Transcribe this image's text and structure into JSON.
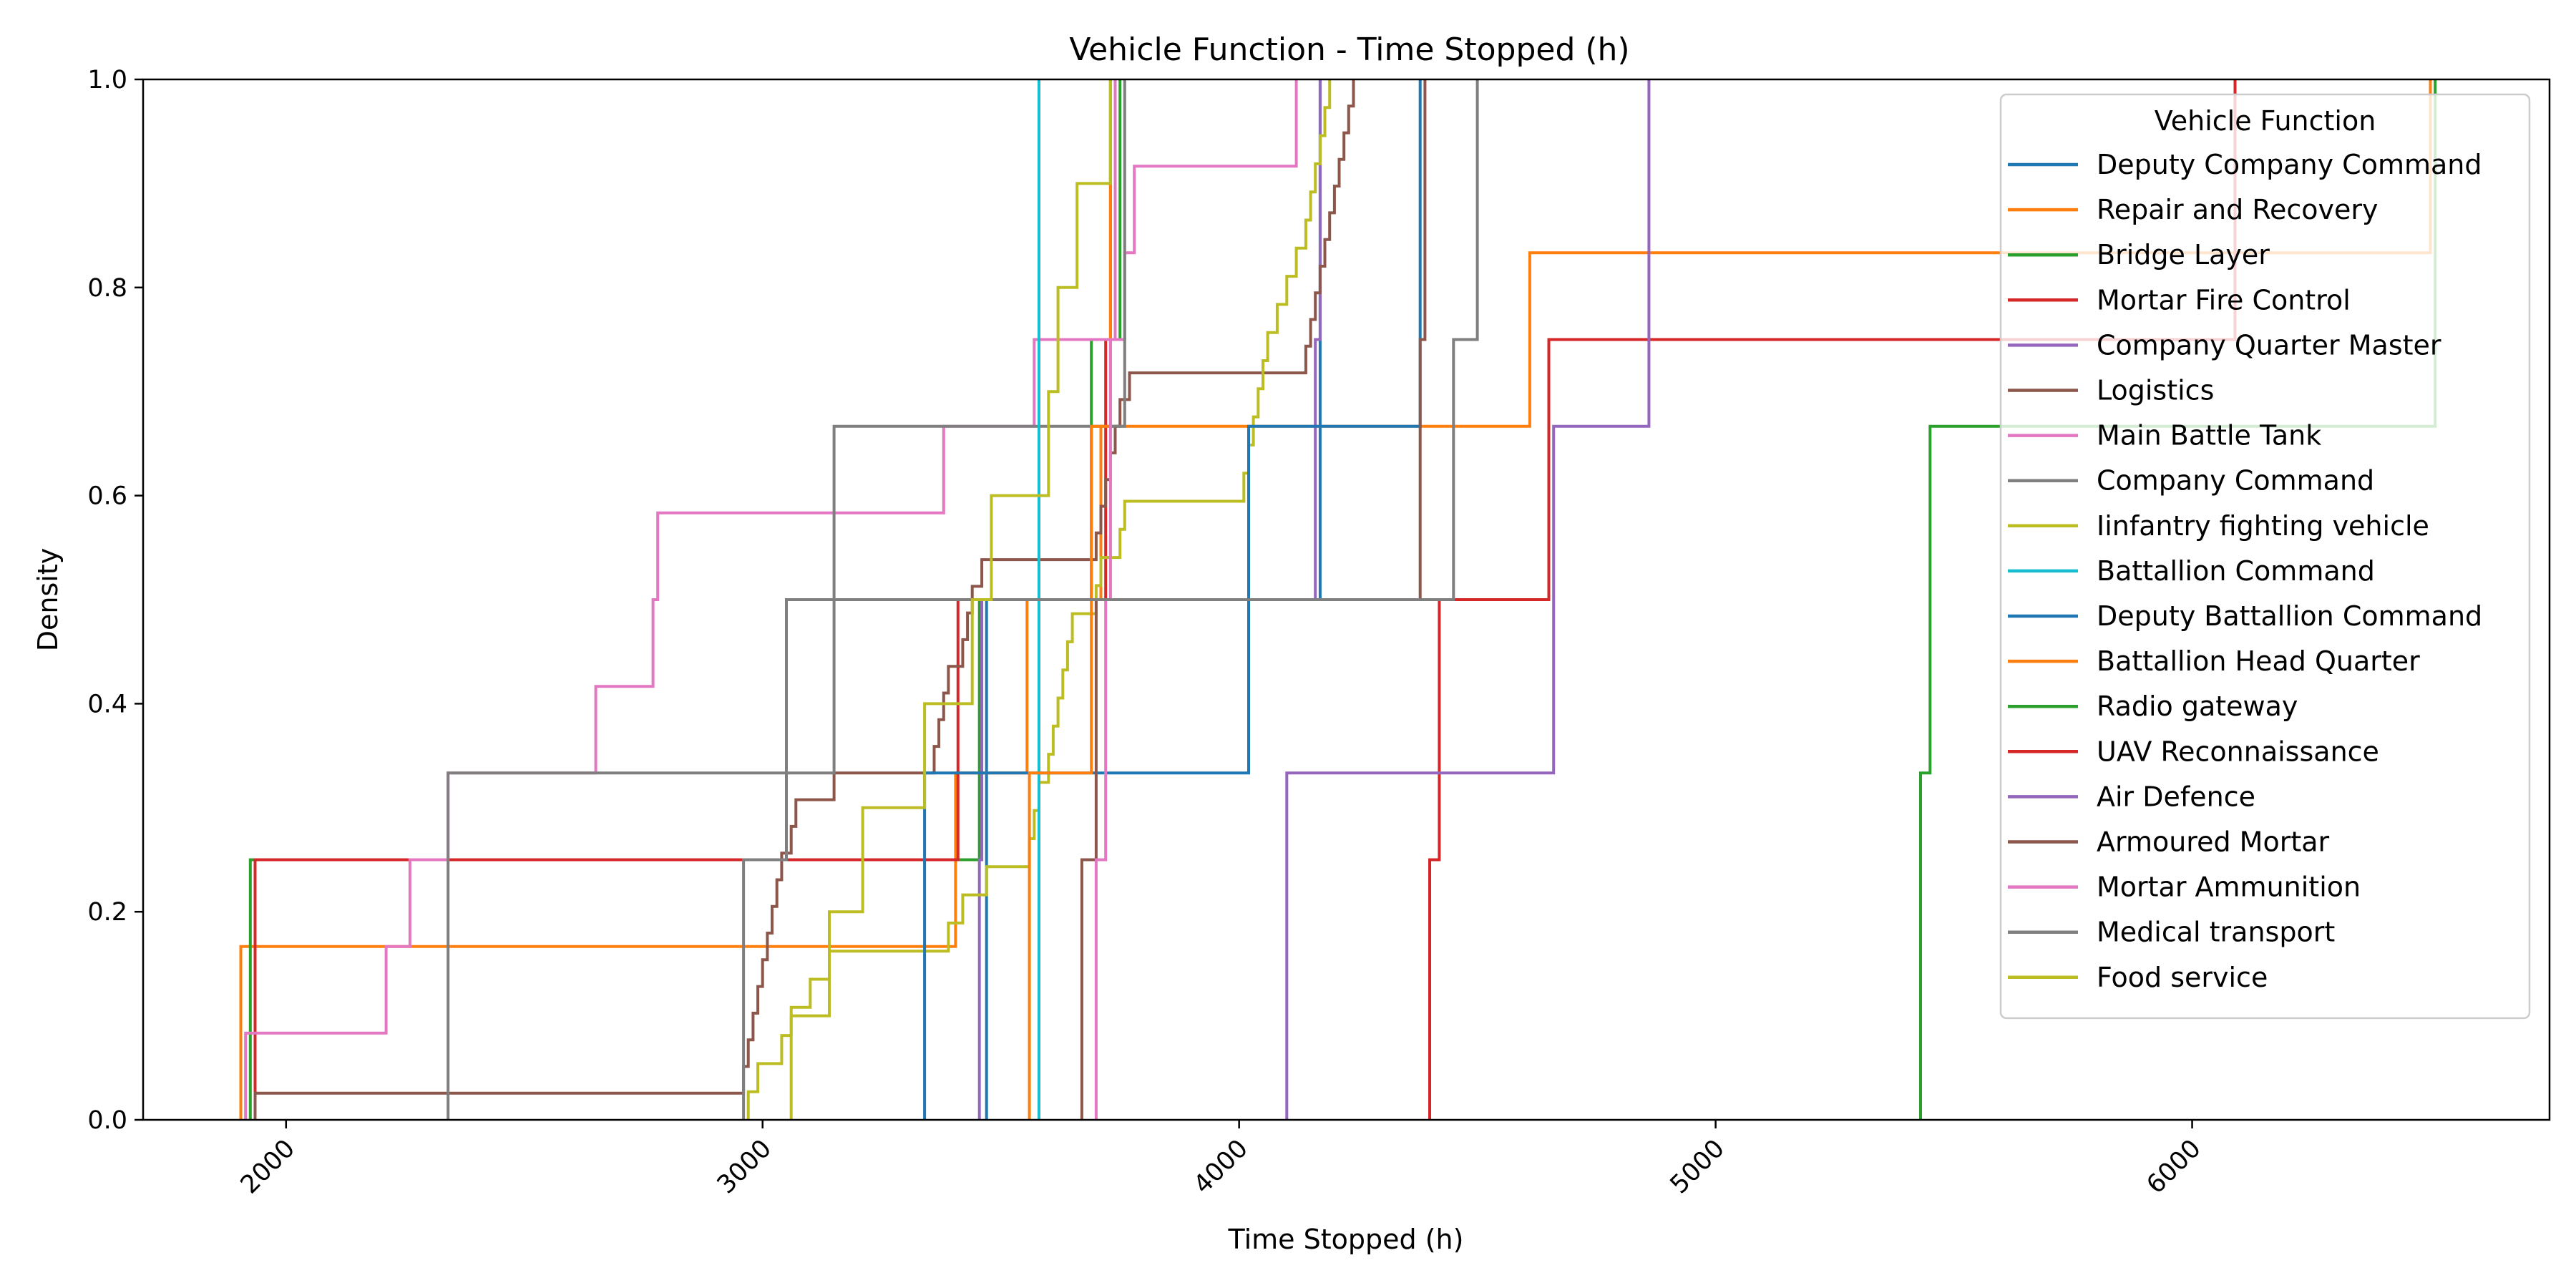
{
  "chart_data": {
    "type": "line",
    "subtype": "ecdf-step",
    "title": "Vehicle Function - Time Stopped (h)",
    "xlabel": "Time Stopped (h)",
    "ylabel": "Density",
    "xlim": [
      1700,
      6750
    ],
    "ylim": [
      0,
      1.0
    ],
    "xticks": [
      2000,
      3000,
      4000,
      5000,
      6000
    ],
    "yticks": [
      0.0,
      0.2,
      0.4,
      0.6,
      0.8,
      1.0
    ],
    "ytick_labels": [
      "0.0",
      "0.2",
      "0.4",
      "0.6",
      "0.8",
      "1.0"
    ],
    "xtick_rotation": 45,
    "grid": false,
    "legend": {
      "title": "Vehicle Function",
      "position": "top-right"
    },
    "series": [
      {
        "name": "Deputy Company Command",
        "color": "#1f77b4",
        "x": [
          3470,
          4170
        ]
      },
      {
        "name": "Repair and Recovery",
        "color": "#ff7f0e",
        "x": [
          1905,
          3405,
          3555,
          3710,
          4610,
          6500
        ]
      },
      {
        "name": "Bridge Layer",
        "color": "#2ca02c",
        "x": [
          1925,
          3455,
          3690,
          3750
        ]
      },
      {
        "name": "Mortar Fire Control",
        "color": "#d62728",
        "x": [
          1935,
          3410,
          3720,
          3730
        ]
      },
      {
        "name": "Company Quarter Master",
        "color": "#9467bd",
        "x": [
          3455,
          3460,
          4160,
          4170
        ]
      },
      {
        "name": "Logistics",
        "color": "#8c564b",
        "x": [
          1935,
          2960,
          2970,
          2980,
          2990,
          3000,
          3010,
          3020,
          3030,
          3040,
          3060,
          3070,
          3150,
          3360,
          3370,
          3380,
          3390,
          3420,
          3430,
          3440,
          3460,
          3700,
          3710,
          3720,
          3730,
          3740,
          3750,
          3770,
          4140,
          4150,
          4160,
          4170,
          4180,
          4190,
          4200,
          4210,
          4220,
          4230,
          4240
        ]
      },
      {
        "name": "Main Battle Tank",
        "color": "#e377c2",
        "x": [
          1915,
          2210,
          2260,
          2340,
          2650,
          2770,
          2780,
          3380,
          3570,
          3760,
          3780,
          4120
        ]
      },
      {
        "name": "Company Command",
        "color": "#7f7f7f",
        "x": [
          2340,
          3150,
          3760
        ]
      },
      {
        "name": "Iinfantry fighting vehicle",
        "color": "#bcbd22",
        "x": [
          2970,
          2990,
          3040,
          3060,
          3100,
          3140,
          3390,
          3420,
          3470,
          3560,
          3570,
          3580,
          3600,
          3610,
          3620,
          3630,
          3640,
          3650,
          3700,
          3710,
          3750,
          3760,
          4010,
          4020,
          4030,
          4040,
          4050,
          4060,
          4080,
          4100,
          4120,
          4140,
          4150,
          4160,
          4170,
          4180,
          4190
        ]
      },
      {
        "name": "Battallion Command",
        "color": "#17becf",
        "x": [
          3580
        ]
      },
      {
        "name": "Deputy Battallion Command",
        "color": "#1f77b4",
        "x": [
          3340,
          4020,
          4380
        ]
      },
      {
        "name": "Battallion Head Quarter",
        "color": "#ff7f0e",
        "x": [
          3560,
          3690,
          3730
        ]
      },
      {
        "name": "Radio gateway",
        "color": "#2ca02c",
        "x": [
          5430,
          5450,
          6510
        ]
      },
      {
        "name": "UAV Reconnaissance",
        "color": "#d62728",
        "x": [
          4400,
          4420,
          4650,
          6090
        ]
      },
      {
        "name": "Air Defence",
        "color": "#9467bd",
        "x": [
          4100,
          4660,
          4860
        ]
      },
      {
        "name": "Armoured Mortar",
        "color": "#8c564b",
        "x": [
          3670,
          3700,
          4380,
          4390
        ]
      },
      {
        "name": "Mortar Ammunition",
        "color": "#e377c2",
        "x": [
          3700,
          3720,
          3730,
          3740
        ]
      },
      {
        "name": "Medical transport",
        "color": "#7f7f7f",
        "x": [
          2960,
          3050,
          4450,
          4500
        ]
      },
      {
        "name": "Food service",
        "color": "#bcbd22",
        "x": [
          3060,
          3140,
          3210,
          3340,
          3440,
          3480,
          3600,
          3620,
          3660,
          3730
        ]
      }
    ]
  }
}
